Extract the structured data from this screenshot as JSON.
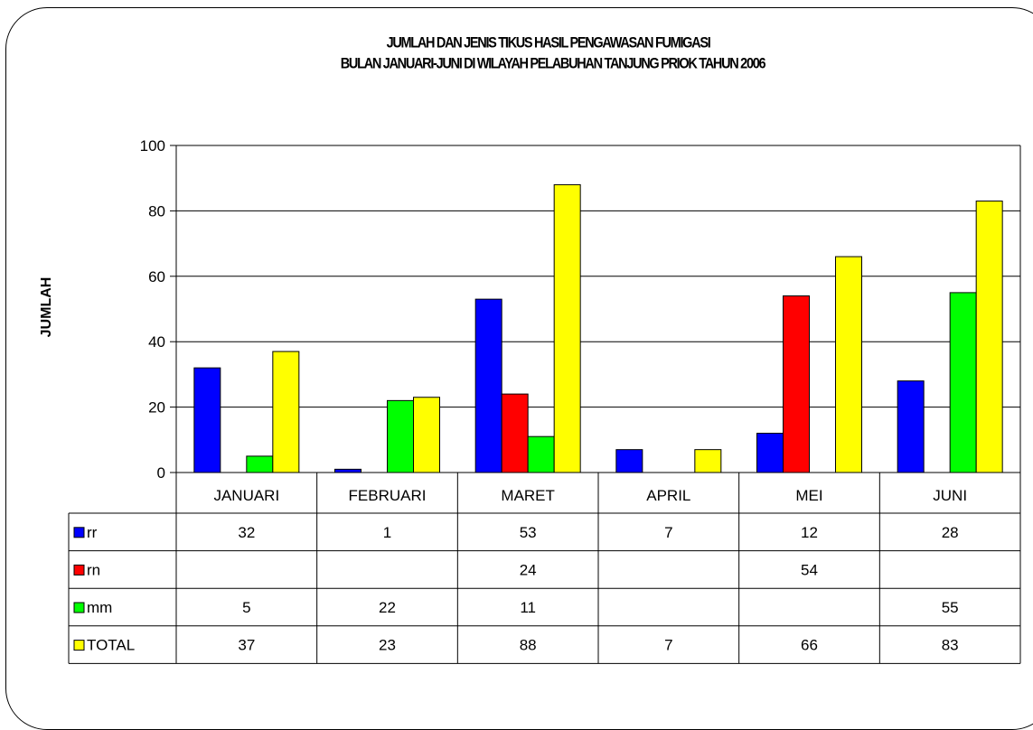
{
  "chart_data": {
    "type": "bar",
    "title_line1": "JUMLAH DAN JENIS TIKUS HASIL PENGAWASAN FUMIGASI",
    "title_line2": "BULAN JANUARI-JUNI DI WILAYAH PELABUHAN TANJUNG PRIOK TAHUN 2006",
    "ylabel": "JUMLAH",
    "ylim": [
      0,
      100
    ],
    "yticks": [
      "0",
      "20",
      "40",
      "60",
      "80",
      "100"
    ],
    "grid": true,
    "legend_placement": "data-table-left",
    "categories": [
      "JANUARI",
      "FEBRUARI",
      "MARET",
      "APRIL",
      "MEI",
      "JUNI"
    ],
    "series": [
      {
        "name": "rr",
        "color": "#0000ff",
        "values": [
          32,
          1,
          53,
          7,
          12,
          28
        ]
      },
      {
        "name": "rn",
        "color": "#ff0000",
        "values": [
          null,
          null,
          24,
          null,
          54,
          null
        ]
      },
      {
        "name": "mm",
        "color": "#00ff00",
        "values": [
          5,
          22,
          11,
          null,
          null,
          55
        ]
      },
      {
        "name": "TOTAL",
        "color": "#ffff00",
        "values": [
          37,
          23,
          88,
          7,
          66,
          83
        ]
      }
    ]
  }
}
